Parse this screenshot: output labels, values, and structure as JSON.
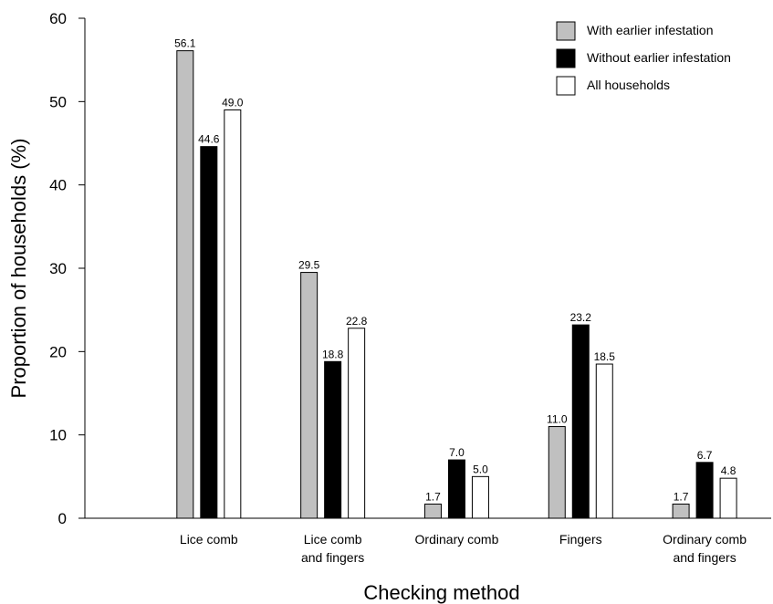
{
  "chart_data": {
    "type": "bar",
    "xlabel": "Checking method",
    "ylabel": "Proportion of households (%)",
    "ylim": [
      0,
      60
    ],
    "yticks": [
      0,
      10,
      20,
      30,
      40,
      50,
      60
    ],
    "categories": [
      [
        "Lice comb"
      ],
      [
        "Lice comb",
        "and fingers"
      ],
      [
        "Ordinary comb"
      ],
      [
        "Fingers"
      ],
      [
        "Ordinary comb",
        "and fingers"
      ]
    ],
    "series": [
      {
        "name": "With earlier infestation",
        "color": "#c0c0c0",
        "values": [
          56.1,
          29.5,
          1.7,
          11.0,
          1.7
        ],
        "labels": [
          "56.1",
          "29.5",
          "1.7",
          "11.0",
          "1.7"
        ]
      },
      {
        "name": "Without earlier infestation",
        "color": "#000000",
        "values": [
          44.6,
          18.8,
          7.0,
          23.2,
          6.7
        ],
        "labels": [
          "44.6",
          "18.8",
          "7.0",
          "23.2",
          "6.7"
        ]
      },
      {
        "name": "All households",
        "color": "#ffffff",
        "values": [
          49.0,
          22.8,
          5.0,
          18.5,
          4.8
        ],
        "labels": [
          "49.0",
          "22.8",
          "5.0",
          "18.5",
          "4.8"
        ]
      }
    ],
    "legend_position": "top-right",
    "grid": false
  }
}
